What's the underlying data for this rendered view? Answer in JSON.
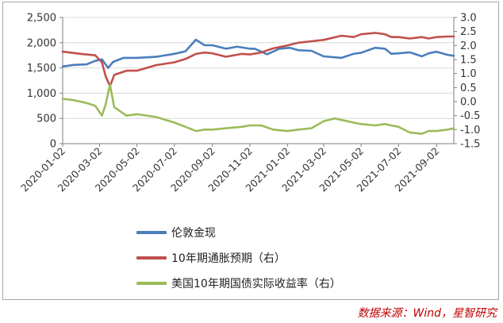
{
  "chart_data": {
    "type": "line",
    "title": "",
    "x_ticks": [
      "2020-01-02",
      "2020-03-02",
      "2020-05-02",
      "2020-07-02",
      "2020-09-02",
      "2020-11-02",
      "2021-01-02",
      "2021-03-02",
      "2021-05-02",
      "2021-07-02",
      "2021-09-02"
    ],
    "x_range": [
      "2020-01-02",
      "2021-09-30"
    ],
    "y_left": {
      "ylim": [
        0,
        2500
      ],
      "ticks": [
        "0",
        "500",
        "1,000",
        "1,500",
        "2,000",
        "2,500"
      ]
    },
    "y_right": {
      "ylim": [
        -1.5,
        3.0
      ],
      "ticks": [
        "-1.5",
        "-1.0",
        "-0.5",
        "0.0",
        "0.5",
        "1.0",
        "1.5",
        "2.0",
        "2.5",
        "3.0"
      ]
    },
    "grid": "horizontal",
    "legend_position": "bottom",
    "series": [
      {
        "name": "伦敦金现",
        "axis": "left",
        "color": "#4a7ebb",
        "points": [
          [
            "2020-01-02",
            1528
          ],
          [
            "2020-01-20",
            1560
          ],
          [
            "2020-02-10",
            1570
          ],
          [
            "2020-02-24",
            1640
          ],
          [
            "2020-03-06",
            1670
          ],
          [
            "2020-03-16",
            1500
          ],
          [
            "2020-03-24",
            1620
          ],
          [
            "2020-04-10",
            1700
          ],
          [
            "2020-05-02",
            1700
          ],
          [
            "2020-06-02",
            1720
          ],
          [
            "2020-07-02",
            1780
          ],
          [
            "2020-07-20",
            1830
          ],
          [
            "2020-08-06",
            2060
          ],
          [
            "2020-08-20",
            1950
          ],
          [
            "2020-09-02",
            1950
          ],
          [
            "2020-09-24",
            1880
          ],
          [
            "2020-10-12",
            1920
          ],
          [
            "2020-11-02",
            1880
          ],
          [
            "2020-11-10",
            1880
          ],
          [
            "2020-11-30",
            1770
          ],
          [
            "2020-12-20",
            1880
          ],
          [
            "2021-01-06",
            1900
          ],
          [
            "2021-01-20",
            1850
          ],
          [
            "2021-02-10",
            1840
          ],
          [
            "2021-03-02",
            1730
          ],
          [
            "2021-03-31",
            1700
          ],
          [
            "2021-04-20",
            1780
          ],
          [
            "2021-05-02",
            1800
          ],
          [
            "2021-05-25",
            1900
          ],
          [
            "2021-06-10",
            1880
          ],
          [
            "2021-06-20",
            1780
          ],
          [
            "2021-07-02",
            1790
          ],
          [
            "2021-07-20",
            1810
          ],
          [
            "2021-08-09",
            1730
          ],
          [
            "2021-08-20",
            1790
          ],
          [
            "2021-09-02",
            1820
          ],
          [
            "2021-09-20",
            1760
          ],
          [
            "2021-09-30",
            1740
          ]
        ]
      },
      {
        "name": "10年期通胀预期（右）",
        "axis": "right",
        "color": "#c0504d",
        "points": [
          [
            "2020-01-02",
            1.78
          ],
          [
            "2020-02-01",
            1.7
          ],
          [
            "2020-02-24",
            1.65
          ],
          [
            "2020-03-06",
            1.4
          ],
          [
            "2020-03-12",
            0.9
          ],
          [
            "2020-03-19",
            0.55
          ],
          [
            "2020-03-26",
            0.95
          ],
          [
            "2020-04-15",
            1.1
          ],
          [
            "2020-05-02",
            1.1
          ],
          [
            "2020-06-02",
            1.3
          ],
          [
            "2020-07-02",
            1.4
          ],
          [
            "2020-07-20",
            1.52
          ],
          [
            "2020-08-06",
            1.7
          ],
          [
            "2020-08-20",
            1.75
          ],
          [
            "2020-09-02",
            1.72
          ],
          [
            "2020-09-24",
            1.6
          ],
          [
            "2020-10-20",
            1.7
          ],
          [
            "2020-11-02",
            1.68
          ],
          [
            "2020-11-20",
            1.75
          ],
          [
            "2020-12-10",
            1.9
          ],
          [
            "2021-01-02",
            2.0
          ],
          [
            "2021-01-20",
            2.1
          ],
          [
            "2021-02-10",
            2.15
          ],
          [
            "2021-03-02",
            2.2
          ],
          [
            "2021-03-31",
            2.35
          ],
          [
            "2021-04-20",
            2.3
          ],
          [
            "2021-05-02",
            2.4
          ],
          [
            "2021-05-25",
            2.45
          ],
          [
            "2021-06-10",
            2.4
          ],
          [
            "2021-06-20",
            2.3
          ],
          [
            "2021-07-02",
            2.3
          ],
          [
            "2021-07-20",
            2.25
          ],
          [
            "2021-08-09",
            2.3
          ],
          [
            "2021-08-20",
            2.25
          ],
          [
            "2021-09-02",
            2.3
          ],
          [
            "2021-09-20",
            2.32
          ],
          [
            "2021-09-30",
            2.32
          ]
        ]
      },
      {
        "name": "美国10年期国债实际收益率（右）",
        "axis": "right",
        "color": "#9bbb59",
        "points": [
          [
            "2020-01-02",
            0.1
          ],
          [
            "2020-01-20",
            0.05
          ],
          [
            "2020-02-10",
            -0.05
          ],
          [
            "2020-02-24",
            -0.15
          ],
          [
            "2020-03-06",
            -0.5
          ],
          [
            "2020-03-12",
            -0.1
          ],
          [
            "2020-03-19",
            0.6
          ],
          [
            "2020-03-26",
            -0.2
          ],
          [
            "2020-04-15",
            -0.5
          ],
          [
            "2020-05-02",
            -0.45
          ],
          [
            "2020-06-02",
            -0.55
          ],
          [
            "2020-07-02",
            -0.75
          ],
          [
            "2020-07-20",
            -0.9
          ],
          [
            "2020-08-06",
            -1.05
          ],
          [
            "2020-08-20",
            -1.0
          ],
          [
            "2020-09-02",
            -1.0
          ],
          [
            "2020-09-24",
            -0.95
          ],
          [
            "2020-10-20",
            -0.9
          ],
          [
            "2020-11-02",
            -0.85
          ],
          [
            "2020-11-20",
            -0.85
          ],
          [
            "2020-12-10",
            -1.0
          ],
          [
            "2021-01-02",
            -1.05
          ],
          [
            "2021-01-20",
            -1.0
          ],
          [
            "2021-02-10",
            -0.95
          ],
          [
            "2021-03-02",
            -0.7
          ],
          [
            "2021-03-20",
            -0.6
          ],
          [
            "2021-04-20",
            -0.75
          ],
          [
            "2021-05-02",
            -0.8
          ],
          [
            "2021-05-25",
            -0.85
          ],
          [
            "2021-06-10",
            -0.8
          ],
          [
            "2021-06-20",
            -0.85
          ],
          [
            "2021-07-02",
            -0.9
          ],
          [
            "2021-07-20",
            -1.1
          ],
          [
            "2021-08-09",
            -1.15
          ],
          [
            "2021-08-20",
            -1.05
          ],
          [
            "2021-09-02",
            -1.05
          ],
          [
            "2021-09-20",
            -1.0
          ],
          [
            "2021-09-30",
            -0.95
          ]
        ]
      }
    ]
  },
  "legend": {
    "items": [
      "伦敦金现",
      "10年期通胀预期（右）",
      "美国10年期国债实际收益率（右）"
    ]
  },
  "source_note": "数据来源：Wind，星智研究"
}
